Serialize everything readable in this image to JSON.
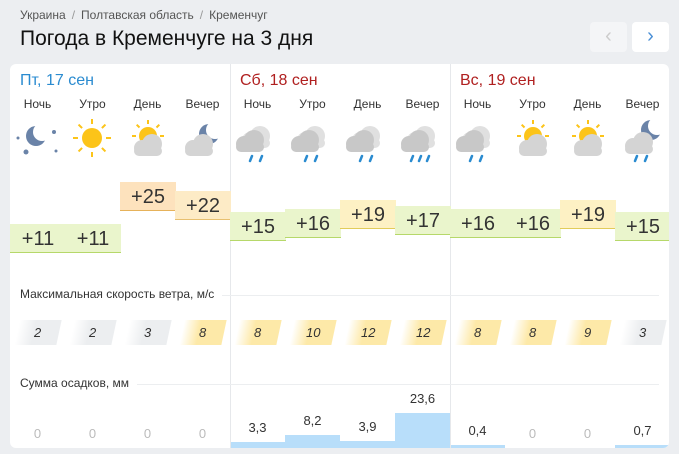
{
  "breadcrumb": [
    "Украина",
    "Полтавская область",
    "Кременчуг"
  ],
  "title": "Погода в Кременчуге на 3 дня",
  "nav": {
    "prev": "‹",
    "next": "›"
  },
  "days": [
    {
      "label": "Пт, 17 сен",
      "color": "#2a8bd0"
    },
    {
      "label": "Сб, 18 сен",
      "color": "#b02020"
    },
    {
      "label": "Вс, 19 сен",
      "color": "#b02020"
    }
  ],
  "parts": [
    "Ночь",
    "Утро",
    "День",
    "Вечер",
    "Ночь",
    "Утро",
    "День",
    "Вечер",
    "Ночь",
    "Утро",
    "День",
    "Вечер"
  ],
  "icons": [
    "clear-night-icon",
    "sun-icon",
    "partly-cloudy-day-icon",
    "partly-cloudy-night-icon",
    "rain-clouds-icon",
    "rain-clouds-icon",
    "rain-clouds-icon",
    "heavy-rain-clouds-icon",
    "rain-clouds-icon",
    "partly-cloudy-day-icon",
    "partly-cloudy-day-icon",
    "night-rain-icon"
  ],
  "temps": [
    "+11",
    "+11",
    "+25",
    "+22",
    "+15",
    "+16",
    "+19",
    "+17",
    "+16",
    "+16",
    "+19",
    "+15"
  ],
  "wind_label": "Максимальная скорость ветра, м/с",
  "wind": [
    "2",
    "2",
    "3",
    "8",
    "8",
    "10",
    "12",
    "12",
    "8",
    "8",
    "9",
    "3"
  ],
  "precip_label": "Сумма осадков, мм",
  "precip": [
    "0",
    "0",
    "0",
    "0",
    "3,3",
    "8,2",
    "3,9",
    "23,6",
    "0,4",
    "0",
    "0",
    "0,7"
  ],
  "colors": {
    "warm": "#fde2bd",
    "mild": "#fdf1c4",
    "cool": "#eaf5cc",
    "wind_strong": "#fde9a8",
    "wind_weak": "#eceef0",
    "rain": "#b8defa"
  }
}
